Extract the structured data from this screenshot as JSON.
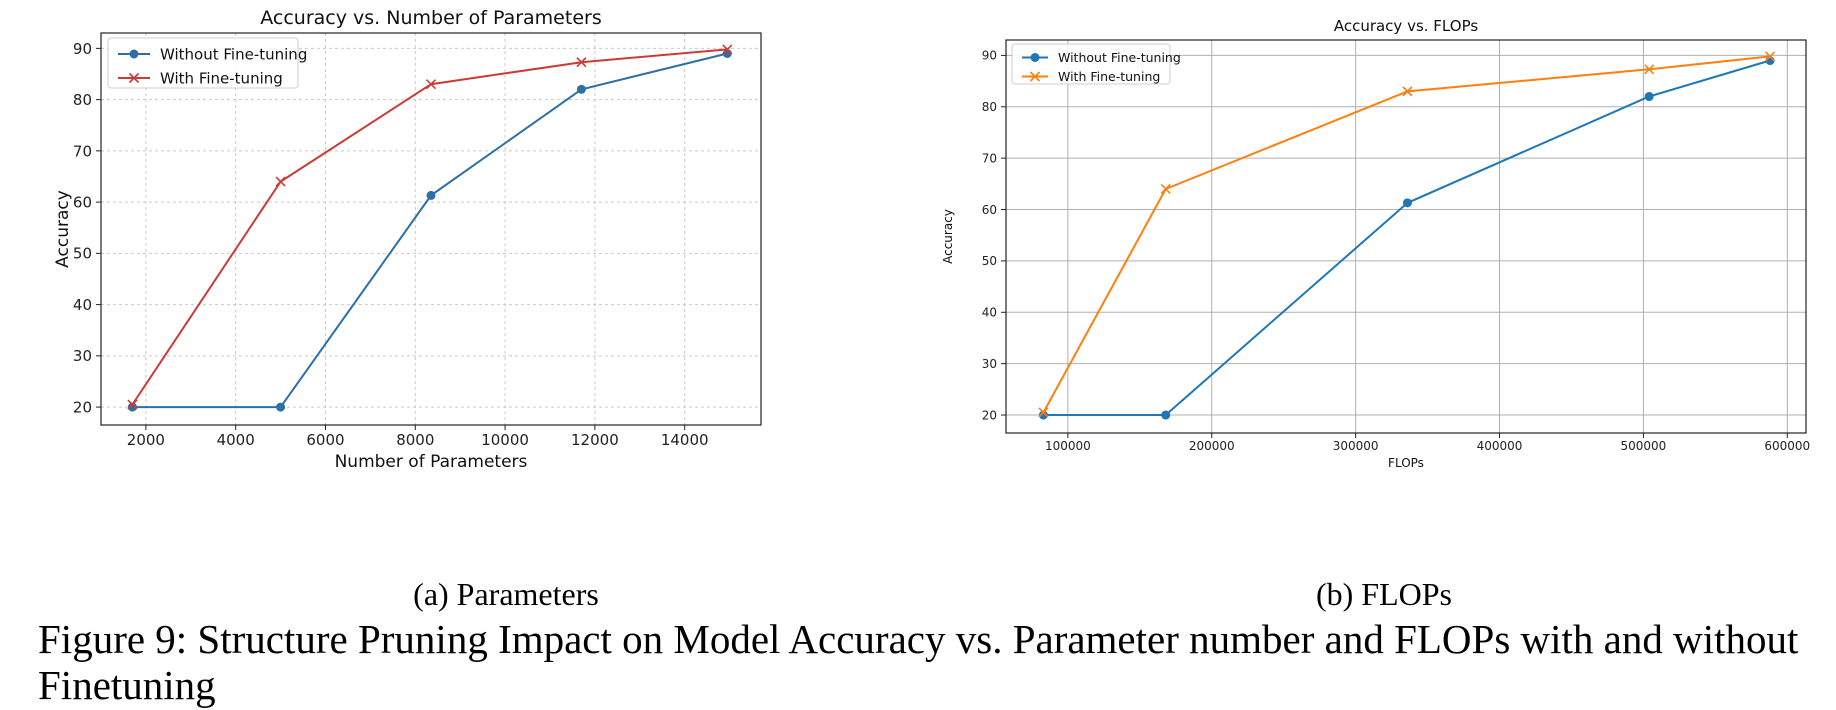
{
  "figure": {
    "caption": "Figure 9: Structure Pruning Impact on Model Accuracy vs. Parameter number and FLOPs with and without Finetuning"
  },
  "subcaptions": {
    "a": "(a)  Parameters",
    "b": "(b)  FLOPs"
  },
  "chart_data": [
    {
      "type": "line",
      "title": "Accuracy vs. Number of Parameters",
      "xlabel": "Number of Parameters",
      "ylabel": "Accuracy",
      "xlim": [
        1000,
        15700
      ],
      "ylim": [
        16.5,
        93
      ],
      "xticks": [
        2000,
        4000,
        6000,
        8000,
        10000,
        12000,
        14000
      ],
      "yticks": [
        20,
        30,
        40,
        50,
        60,
        70,
        80,
        90
      ],
      "grid": "dashed",
      "legend": "top-left",
      "series": [
        {
          "name": "Without Fine-tuning",
          "color": "#2e6fa6",
          "marker": "circle",
          "x": [
            1700,
            5000,
            8350,
            11700,
            14950
          ],
          "y": [
            20,
            20,
            61.3,
            82,
            89
          ]
        },
        {
          "name": "With Fine-tuning",
          "color": "#c93b36",
          "marker": "x",
          "x": [
            1700,
            5000,
            8350,
            11700,
            14950
          ],
          "y": [
            20.5,
            64,
            83,
            87.3,
            89.8
          ]
        }
      ]
    },
    {
      "type": "line",
      "title": "Accuracy vs. FLOPs",
      "xlabel": "FLOPs",
      "ylabel": "Accuracy",
      "xlim": [
        57000,
        613000
      ],
      "ylim": [
        16.5,
        93
      ],
      "xticks": [
        100000,
        200000,
        300000,
        400000,
        500000,
        600000
      ],
      "yticks": [
        20,
        30,
        40,
        50,
        60,
        70,
        80,
        90
      ],
      "grid": "solid",
      "legend": "top-left",
      "series": [
        {
          "name": "Without Fine-tuning",
          "color": "#1f77b4",
          "marker": "circle",
          "x": [
            83000,
            168000,
            336000,
            504000,
            588000
          ],
          "y": [
            20,
            20,
            61.3,
            82,
            89
          ]
        },
        {
          "name": "With Fine-tuning",
          "color": "#ff7f0e",
          "marker": "x",
          "x": [
            83000,
            168000,
            336000,
            504000,
            588000
          ],
          "y": [
            20.5,
            64,
            83,
            87.3,
            89.8
          ]
        }
      ]
    }
  ]
}
